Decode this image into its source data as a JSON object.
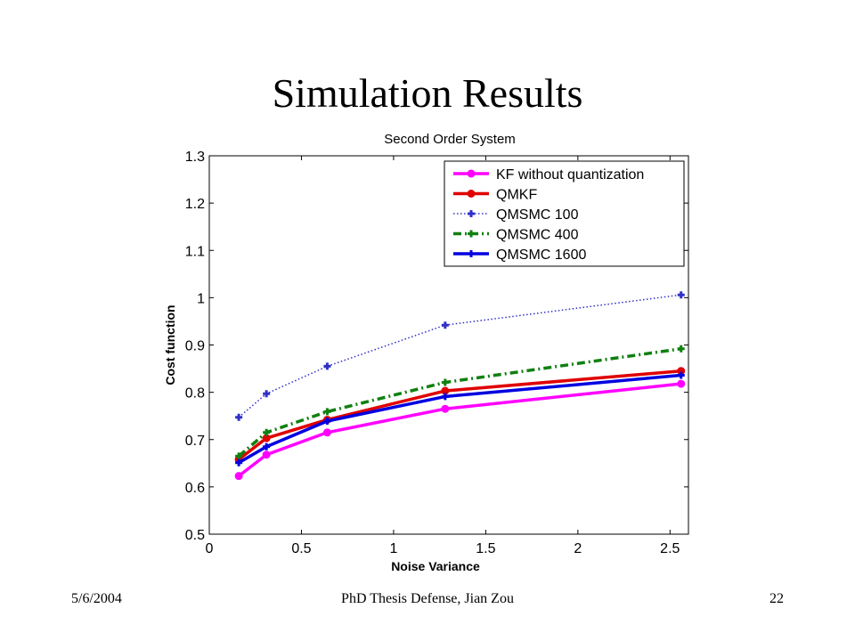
{
  "slide": {
    "title": "Simulation Results",
    "footer_left": "5/6/2004",
    "footer_center": "PhD Thesis Defense, Jian Zou",
    "footer_right": "22"
  },
  "chart_data": {
    "type": "line",
    "title": "Second Order System",
    "xlabel": "Noise Variance",
    "ylabel": "Cost function",
    "xlim": [
      0,
      2.6
    ],
    "ylim": [
      0.5,
      1.3
    ],
    "xticks": [
      0,
      0.5,
      1,
      1.5,
      2,
      2.5
    ],
    "xtick_labels": [
      "0",
      "0.5",
      "1",
      "1.5",
      "2",
      "2.5"
    ],
    "yticks": [
      0.5,
      0.6,
      0.7,
      0.8,
      0.9,
      1.0,
      1.1,
      1.2,
      1.3
    ],
    "ytick_labels": [
      "0.5",
      "0.6",
      "0.7",
      "0.8",
      "0.9",
      "1",
      "1.1",
      "1.2",
      "1.3"
    ],
    "legend_position": "top-right",
    "grid": false,
    "x": [
      0.16,
      0.31,
      0.64,
      1.28,
      2.56
    ],
    "series": [
      {
        "name": "KF without quantization",
        "values": [
          0.623,
          0.668,
          0.715,
          0.765,
          0.818
        ],
        "color": "#ff00ff",
        "dash": "solid",
        "marker": "circle",
        "width": 3.5
      },
      {
        "name": "QMKF",
        "values": [
          0.658,
          0.703,
          0.742,
          0.803,
          0.845
        ],
        "color": "#e00000",
        "dash": "solid",
        "marker": "circle",
        "width": 3.5
      },
      {
        "name": "QMSMC 100",
        "values": [
          0.747,
          0.797,
          0.855,
          0.942,
          1.006
        ],
        "color": "#3030c8",
        "dash": "dotted",
        "marker": "plus",
        "width": 1.5
      },
      {
        "name": "QMSMC 400",
        "values": [
          0.665,
          0.715,
          0.759,
          0.821,
          0.892
        ],
        "color": "#108010",
        "dash": "dashdot",
        "marker": "plus",
        "width": 3.5
      },
      {
        "name": "QMSMC 1600",
        "values": [
          0.651,
          0.685,
          0.739,
          0.791,
          0.836
        ],
        "color": "#0000e0",
        "dash": "solid",
        "marker": "plus",
        "width": 3.5
      }
    ]
  }
}
